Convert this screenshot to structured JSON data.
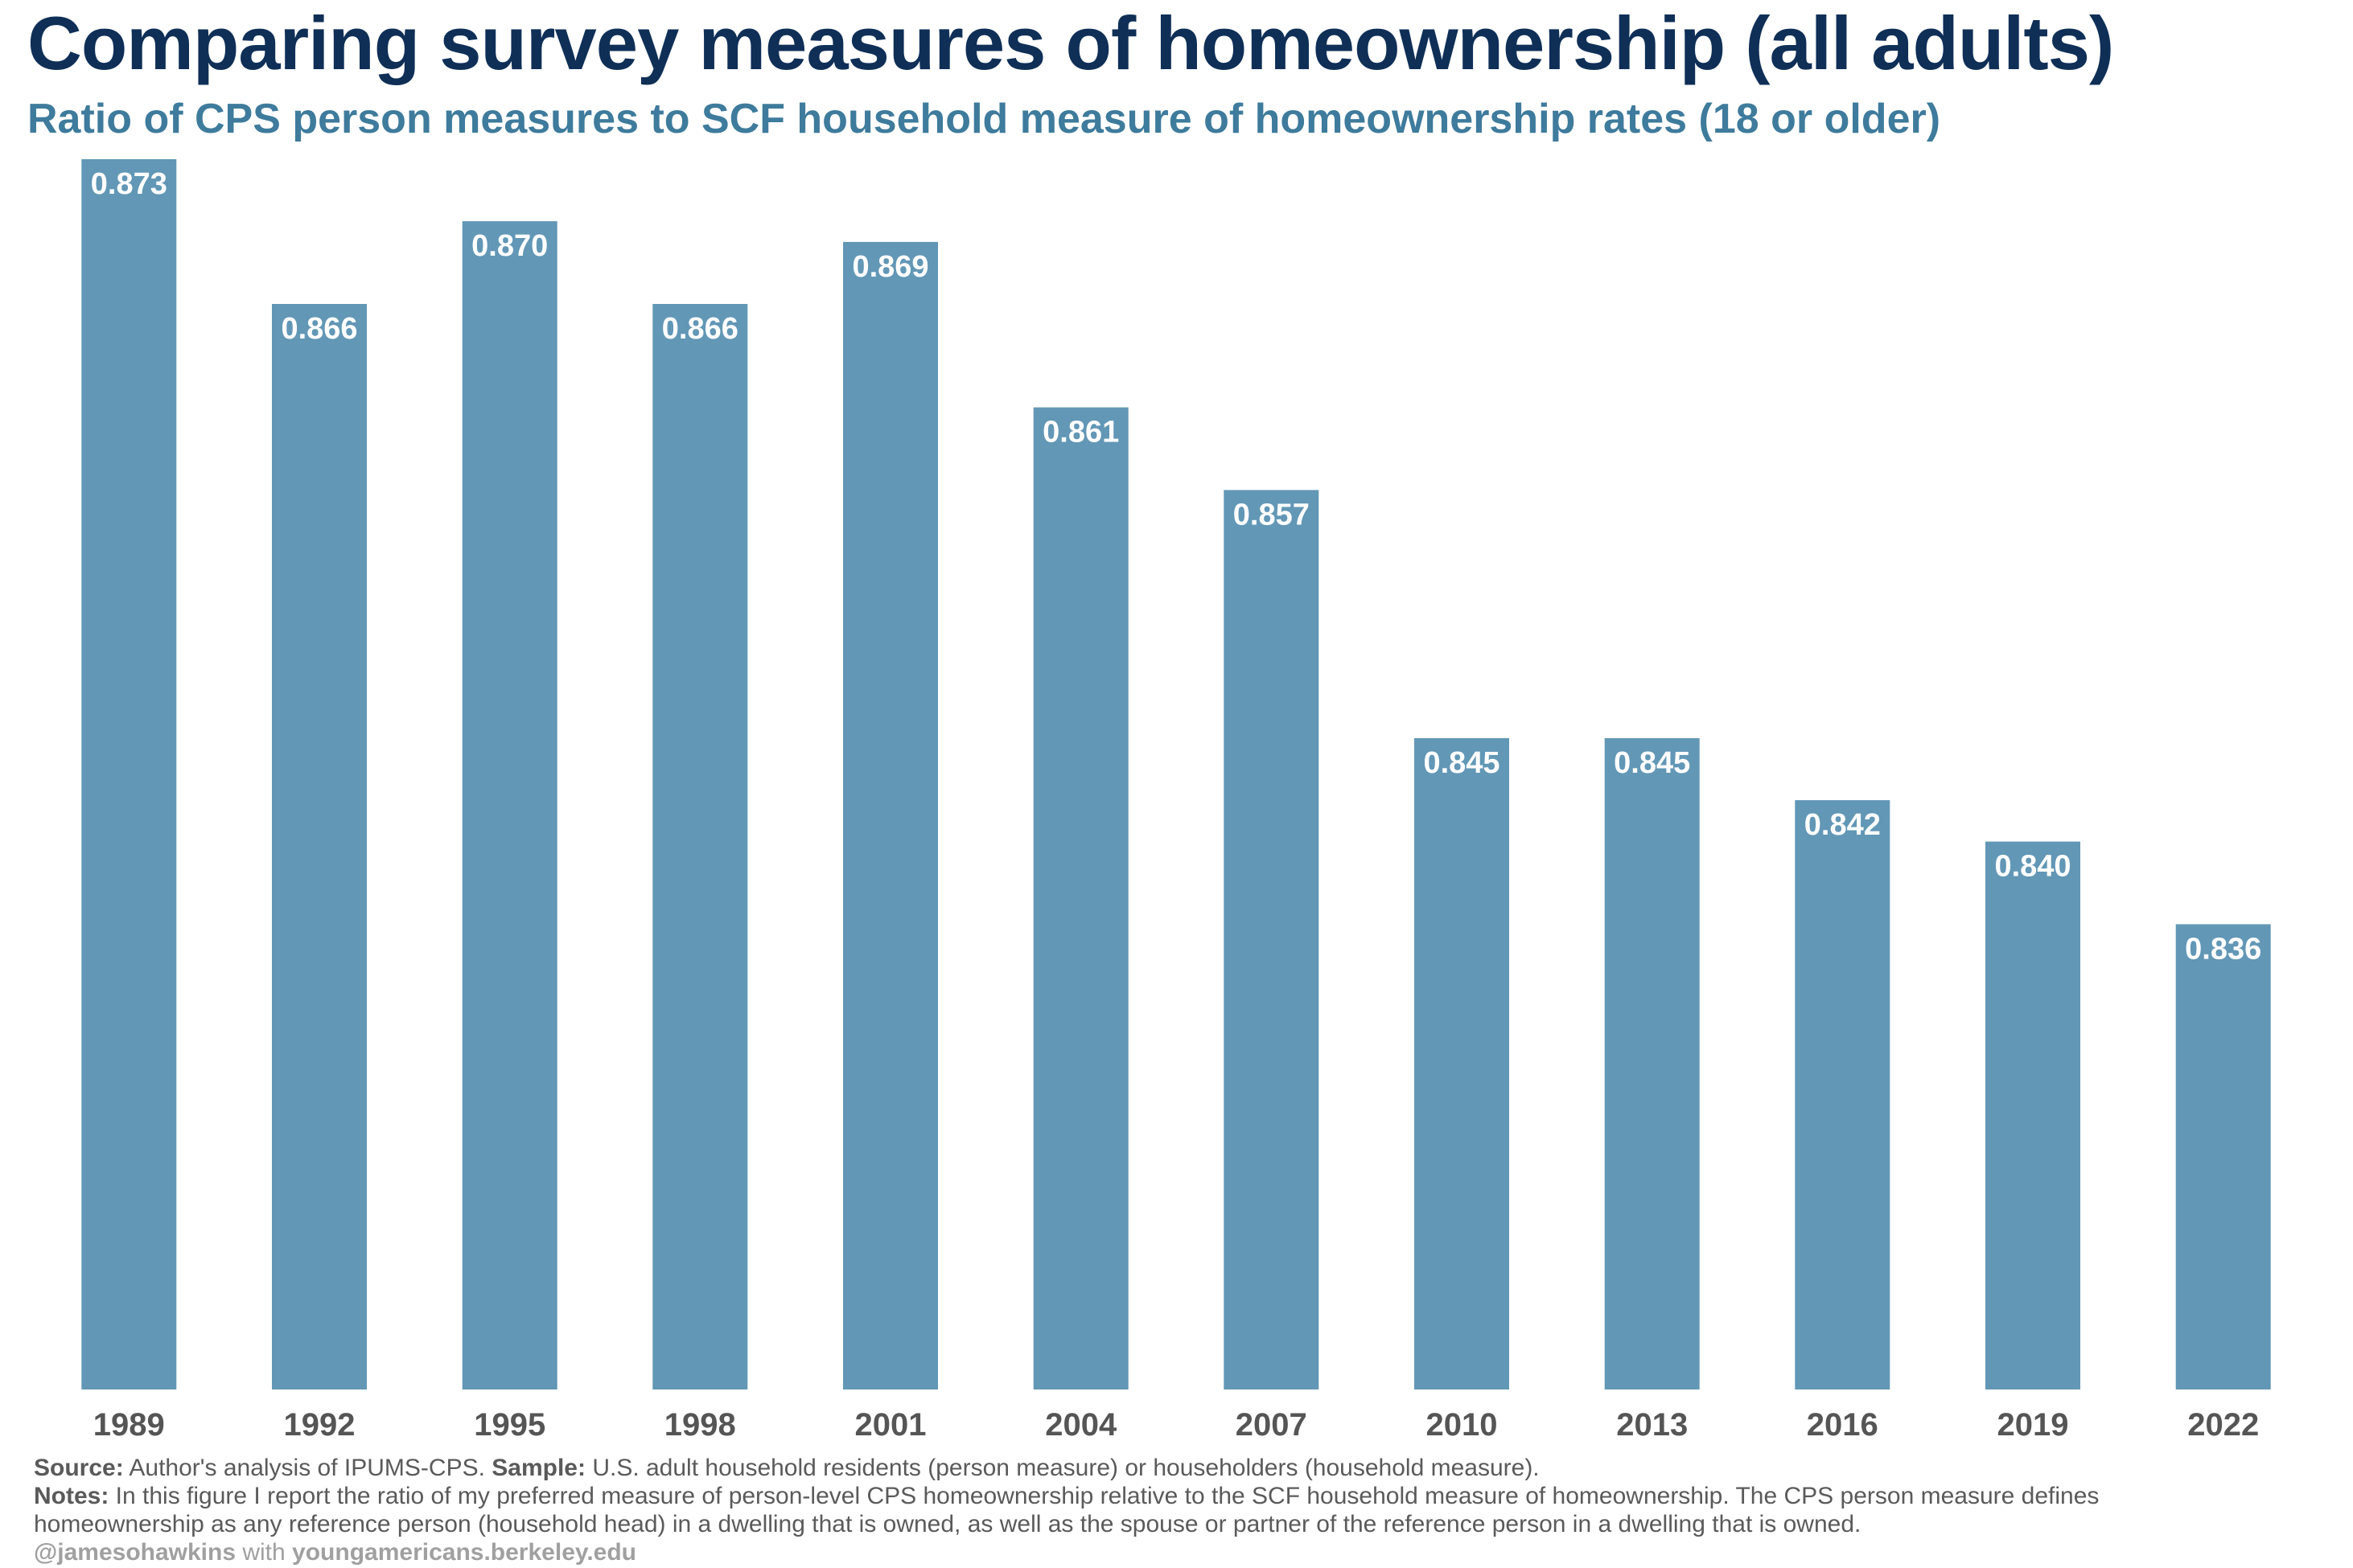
{
  "colors": {
    "title": "#0f2f57",
    "subtitle": "#3e7b9c",
    "bar": "#6297b6",
    "bar_label": "#ffffff",
    "tick_label": "#555555",
    "footer_text": "#5a5a5a",
    "handle_text": "#a0a0a0"
  },
  "chart_data": {
    "type": "bar",
    "title": "Comparing survey measures of homeownership (all adults)",
    "subtitle": "Ratio of CPS person measures to SCF household measure of homeownership rates (18 or older)",
    "categories": [
      "1989",
      "1992",
      "1995",
      "1998",
      "2001",
      "2004",
      "2007",
      "2010",
      "2013",
      "2016",
      "2019",
      "2022"
    ],
    "values": [
      0.873,
      0.866,
      0.87,
      0.866,
      0.869,
      0.861,
      0.857,
      0.845,
      0.845,
      0.842,
      0.84,
      0.836
    ],
    "value_labels": [
      "0.873",
      "0.866",
      "0.870",
      "0.866",
      "0.869",
      "0.861",
      "0.857",
      "0.845",
      "0.845",
      "0.842",
      "0.840",
      "0.836"
    ],
    "xlabel": "",
    "ylabel": "",
    "ylim": [
      0.8135,
      0.873
    ],
    "grid": false,
    "legend": "none"
  },
  "footer": {
    "source_label": "Source:",
    "source_text": " Author's analysis of IPUMS-CPS. ",
    "sample_label": "Sample:",
    "sample_text": " U.S. adult household residents (person measure) or householders (household measure).",
    "notes_label": "Notes:",
    "notes_line1": " In this figure I report the ratio of my preferred measure of person-level CPS homeownership relative to the SCF household measure of homeownership. The CPS person measure defines",
    "notes_line2": "homeownership as any reference person (household head) in a dwelling that is owned, as well as the spouse or partner of the reference person in a dwelling that is owned.",
    "handle": "@jamesohawkins",
    "with": " with ",
    "site": "youngamericans.berkeley.edu"
  }
}
